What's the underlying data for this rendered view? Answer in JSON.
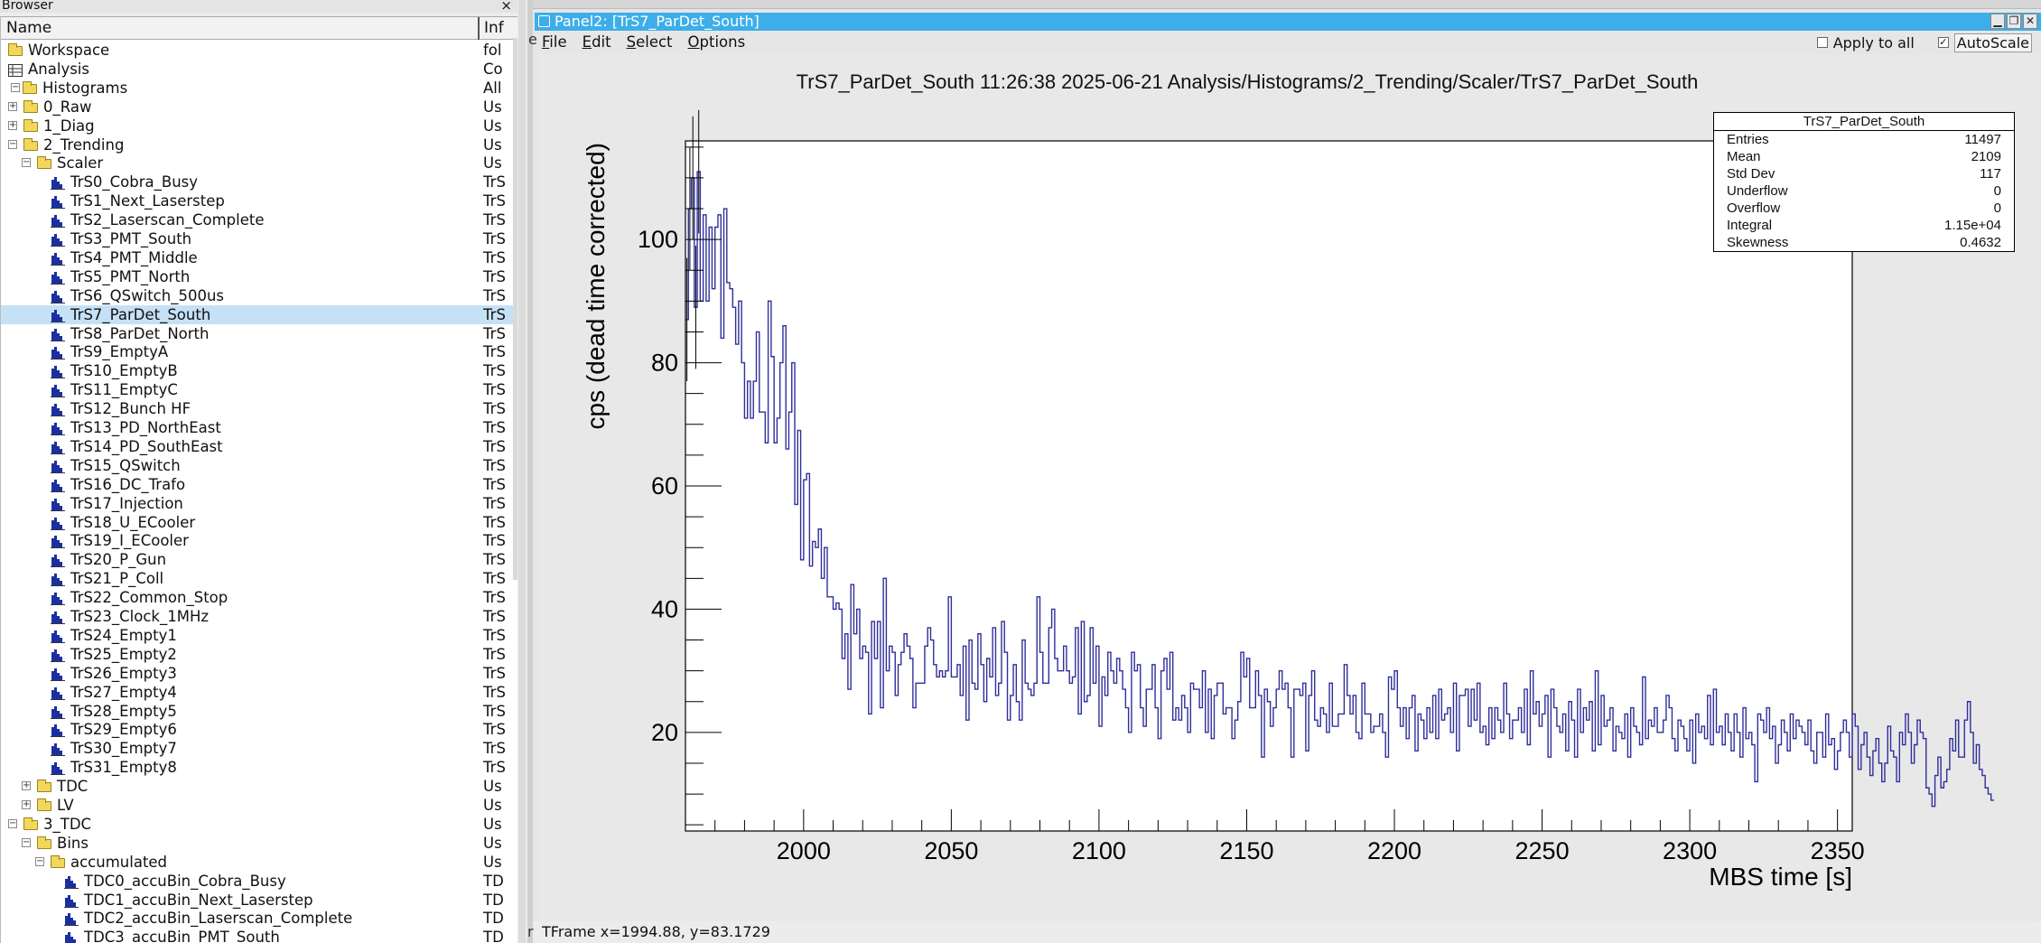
{
  "browser": {
    "title": "Browser",
    "close_label": "×",
    "columns": {
      "name": "Name",
      "info": "Inf"
    },
    "rows": [
      {
        "label": "Workspace",
        "info": "fol",
        "icon": "folder-icon",
        "level": 0
      },
      {
        "label": "Analysis",
        "info": "Co",
        "icon": "analysis-icon",
        "level": 0
      },
      {
        "label": "Histograms",
        "info": "All",
        "icon": "folder-icon",
        "level": 0,
        "expander": "−"
      },
      {
        "label": "0_Raw",
        "info": "Us",
        "icon": "folder-icon",
        "level": 1,
        "expander": "+"
      },
      {
        "label": "1_Diag",
        "info": "Us",
        "icon": "folder-icon",
        "level": 1,
        "expander": "+"
      },
      {
        "label": "2_Trending",
        "info": "Us",
        "icon": "folder-icon",
        "level": 1,
        "expander": "−"
      },
      {
        "label": "Scaler",
        "info": "Us",
        "icon": "folder-icon",
        "level": 2,
        "expander": "−"
      },
      {
        "label": "TrS0_Cobra_Busy",
        "info": "TrS",
        "icon": "histogram-icon",
        "level": 3
      },
      {
        "label": "TrS1_Next_Laserstep",
        "info": "TrS",
        "icon": "histogram-icon",
        "level": 3
      },
      {
        "label": "TrS2_Laserscan_Complete",
        "info": "TrS",
        "icon": "histogram-icon",
        "level": 3
      },
      {
        "label": "TrS3_PMT_South",
        "info": "TrS",
        "icon": "histogram-icon",
        "level": 3
      },
      {
        "label": "TrS4_PMT_Middle",
        "info": "TrS",
        "icon": "histogram-icon",
        "level": 3
      },
      {
        "label": "TrS5_PMT_North",
        "info": "TrS",
        "icon": "histogram-icon",
        "level": 3
      },
      {
        "label": "TrS6_QSwitch_500us",
        "info": "TrS",
        "icon": "histogram-icon",
        "level": 3
      },
      {
        "label": "TrS7_ParDet_South",
        "info": "TrS",
        "icon": "histogram-icon",
        "level": 3,
        "selected": true
      },
      {
        "label": "TrS8_ParDet_North",
        "info": "TrS",
        "icon": "histogram-icon",
        "level": 3
      },
      {
        "label": "TrS9_EmptyA",
        "info": "TrS",
        "icon": "histogram-icon",
        "level": 3
      },
      {
        "label": "TrS10_EmptyB",
        "info": "TrS",
        "icon": "histogram-icon",
        "level": 3
      },
      {
        "label": "TrS11_EmptyC",
        "info": "TrS",
        "icon": "histogram-icon",
        "level": 3
      },
      {
        "label": "TrS12_Bunch HF",
        "info": "TrS",
        "icon": "histogram-icon",
        "level": 3
      },
      {
        "label": "TrS13_PD_NorthEast",
        "info": "TrS",
        "icon": "histogram-icon",
        "level": 3
      },
      {
        "label": "TrS14_PD_SouthEast",
        "info": "TrS",
        "icon": "histogram-icon",
        "level": 3
      },
      {
        "label": "TrS15_QSwitch",
        "info": "TrS",
        "icon": "histogram-icon",
        "level": 3
      },
      {
        "label": "TrS16_DC_Trafo",
        "info": "TrS",
        "icon": "histogram-icon",
        "level": 3
      },
      {
        "label": "TrS17_Injection",
        "info": "TrS",
        "icon": "histogram-icon",
        "level": 3
      },
      {
        "label": "TrS18_U_ECooler",
        "info": "TrS",
        "icon": "histogram-icon",
        "level": 3
      },
      {
        "label": "TrS19_I_ECooler",
        "info": "TrS",
        "icon": "histogram-icon",
        "level": 3
      },
      {
        "label": "TrS20_P_Gun",
        "info": "TrS",
        "icon": "histogram-icon",
        "level": 3
      },
      {
        "label": "TrS21_P_Coll",
        "info": "TrS",
        "icon": "histogram-icon",
        "level": 3
      },
      {
        "label": "TrS22_Common_Stop",
        "info": "TrS",
        "icon": "histogram-icon",
        "level": 3
      },
      {
        "label": "TrS23_Clock_1MHz",
        "info": "TrS",
        "icon": "histogram-icon",
        "level": 3
      },
      {
        "label": "TrS24_Empty1",
        "info": "TrS",
        "icon": "histogram-icon",
        "level": 3
      },
      {
        "label": "TrS25_Empty2",
        "info": "TrS",
        "icon": "histogram-icon",
        "level": 3
      },
      {
        "label": "TrS26_Empty3",
        "info": "TrS",
        "icon": "histogram-icon",
        "level": 3
      },
      {
        "label": "TrS27_Empty4",
        "info": "TrS",
        "icon": "histogram-icon",
        "level": 3
      },
      {
        "label": "TrS28_Empty5",
        "info": "TrS",
        "icon": "histogram-icon",
        "level": 3
      },
      {
        "label": "TrS29_Empty6",
        "info": "TrS",
        "icon": "histogram-icon",
        "level": 3
      },
      {
        "label": "TrS30_Empty7",
        "info": "TrS",
        "icon": "histogram-icon",
        "level": 3
      },
      {
        "label": "TrS31_Empty8",
        "info": "TrS",
        "icon": "histogram-icon",
        "level": 3
      },
      {
        "label": "TDC",
        "info": "Us",
        "icon": "folder-icon",
        "level": 2,
        "expander": "+"
      },
      {
        "label": "LV",
        "info": "Us",
        "icon": "folder-icon",
        "level": 2,
        "expander": "+"
      },
      {
        "label": "3_TDC",
        "info": "Us",
        "icon": "folder-icon",
        "level": 1,
        "expander": "−"
      },
      {
        "label": "Bins",
        "info": "Us",
        "icon": "folder-icon",
        "level": 2,
        "expander": "−"
      },
      {
        "label": "accumulated",
        "info": "Us",
        "icon": "folder-icon",
        "level": 3,
        "expander": "−"
      },
      {
        "label": "TDC0_accuBin_Cobra_Busy",
        "info": "TD",
        "icon": "histogram-icon",
        "level": 4
      },
      {
        "label": "TDC1_accuBin_Next_Laserstep",
        "info": "TD",
        "icon": "histogram-icon",
        "level": 4
      },
      {
        "label": "TDC2_accuBin_Laserscan_Complete",
        "info": "TD",
        "icon": "histogram-icon",
        "level": 4
      },
      {
        "label": "TDC3_accuBin_PMT_South",
        "info": "TD",
        "icon": "histogram-icon",
        "level": 4
      }
    ]
  },
  "panel": {
    "title": "Panel2: [TrS7_ParDet_South]",
    "menu": [
      {
        "label": "File",
        "u": "F",
        "rest": "ile"
      },
      {
        "label": "Edit",
        "u": "E",
        "rest": "dit"
      },
      {
        "label": "Select",
        "u": "S",
        "rest": "elect"
      },
      {
        "label": "Options",
        "u": "O",
        "rest": "ptions"
      }
    ],
    "apply_all_label": "Apply to all",
    "apply_all_checked": false,
    "autoscale_label": "AutoScale",
    "autoscale_checked": true,
    "status_text": "TFrame  x=1994.88, y=83.1729"
  },
  "stats": {
    "title": "TrS7_ParDet_South",
    "rows": [
      {
        "k": "Entries",
        "v": "11497"
      },
      {
        "k": "Mean",
        "v": "2109"
      },
      {
        "k": "Std Dev",
        "v": "117"
      },
      {
        "k": "Underflow",
        "v": "0"
      },
      {
        "k": "Overflow",
        "v": "0"
      },
      {
        "k": "Integral",
        "v": "1.15e+04"
      },
      {
        "k": "Skewness",
        "v": "0.4632"
      }
    ]
  },
  "chart_data": {
    "type": "line",
    "title": "TrS7_ParDet_South  11:26:38  2025-06-21  Analysis/Histograms/2_Trending/Scaler/TrS7_ParDet_South",
    "xlabel": "MBS time [s]",
    "ylabel": "cps (dead time corrected)",
    "xlim": [
      1960,
      2355
    ],
    "ylim": [
      4,
      116
    ],
    "x_ticks": [
      2000,
      2050,
      2100,
      2150,
      2200,
      2250,
      2300,
      2350
    ],
    "y_ticks": [
      20,
      40,
      60,
      80,
      100
    ],
    "line_color": "#2f2f9c",
    "x_start": 1960,
    "bin_width": 1,
    "series": [
      {
        "values": [
          87,
          105,
          110,
          89,
          111,
          90,
          104,
          90,
          102,
          92,
          102,
          104,
          84,
          105,
          93,
          92,
          89,
          83,
          90,
          80,
          71,
          77,
          71,
          77,
          85,
          72,
          72,
          67,
          90,
          81,
          67,
          71,
          80,
          86,
          66,
          72,
          80,
          57,
          69,
          48,
          61,
          62,
          47,
          51,
          50,
          53,
          45,
          50,
          42,
          42,
          40,
          41,
          40,
          32,
          36,
          27,
          44,
          36,
          40,
          32,
          34,
          33,
          23,
          38,
          32,
          38,
          24,
          45,
          30,
          34,
          33,
          26,
          31,
          33,
          36,
          34,
          32,
          24,
          28,
          28,
          28,
          34,
          37,
          35,
          31,
          29,
          30,
          29,
          30,
          42,
          29,
          29,
          31,
          26,
          34,
          22,
          35,
          28,
          27,
          36,
          31,
          25,
          32,
          29,
          37,
          26,
          28,
          38,
          33,
          22,
          26,
          31,
          25,
          22,
          35,
          28,
          27,
          26,
          28,
          42,
          33,
          28,
          28,
          37,
          40,
          32,
          30,
          30,
          34,
          30,
          28,
          29,
          37,
          23,
          38,
          25,
          26,
          37,
          28,
          34,
          21,
          29,
          26,
          33,
          30,
          28,
          32,
          30,
          27,
          24,
          20,
          33,
          30,
          31,
          24,
          21,
          27,
          27,
          31,
          24,
          19,
          30,
          32,
          27,
          33,
          22,
          24,
          22,
          26,
          24,
          20,
          28,
          27,
          27,
          24,
          30,
          20,
          27,
          19,
          26,
          28,
          28,
          23,
          24,
          24,
          19,
          22,
          25,
          33,
          29,
          32,
          24,
          24,
          30,
          26,
          16,
          27,
          25,
          21,
          24,
          27,
          30,
          27,
          28,
          24,
          16,
          27,
          27,
          26,
          28,
          17,
          26,
          30,
          22,
          21,
          24,
          23,
          20,
          28,
          21,
          21,
          23,
          23,
          31,
          26,
          23,
          26,
          20,
          19,
          28,
          23,
          23,
          20,
          21,
          21,
          23,
          20,
          16,
          29,
          27,
          30,
          24,
          21,
          24,
          19,
          24,
          26,
          17,
          23,
          22,
          19,
          24,
          20,
          26,
          19,
          27,
          22,
          23,
          24,
          20,
          28,
          17,
          26,
          26,
          27,
          21,
          27,
          22,
          28,
          20,
          21,
          18,
          24,
          19,
          24,
          22,
          20,
          28,
          23,
          19,
          22,
          22,
          24,
          20,
          27,
          18,
          30,
          23,
          25,
          21,
          23,
          26,
          16,
          27,
          24,
          21,
          20,
          23,
          17,
          25,
          22,
          16,
          27,
          20,
          24,
          22,
          25,
          17,
          30,
          18,
          26,
          21,
          22,
          24,
          17,
          21,
          20,
          19,
          23,
          16,
          24,
          21,
          20,
          18,
          29,
          19,
          22,
          21,
          24,
          20,
          20,
          22,
          26,
          24,
          19,
          17,
          22,
          21,
          19,
          17,
          22,
          15,
          23,
          20,
          21,
          19,
          26,
          18,
          27,
          20,
          21,
          18,
          23,
          20,
          17,
          23,
          20,
          16,
          24,
          19,
          20,
          18,
          12,
          23,
          22,
          20,
          24,
          19,
          21,
          15,
          18,
          22,
          20,
          17,
          23,
          19,
          22,
          21,
          20,
          18,
          22,
          17,
          15,
          20,
          20,
          16,
          23,
          18,
          19,
          14,
          17,
          20,
          22,
          20,
          16,
          23,
          21,
          14,
          18,
          20,
          16,
          13,
          17,
          19,
          15,
          12,
          15,
          21,
          17,
          16,
          12,
          20,
          18,
          23,
          20,
          15,
          18,
          22,
          20,
          19,
          11,
          10,
          8,
          13,
          16,
          11,
          12,
          14,
          19,
          17,
          22,
          16,
          16,
          22,
          25,
          20,
          15,
          18,
          14,
          13,
          11,
          10,
          9
        ]
      }
    ]
  }
}
